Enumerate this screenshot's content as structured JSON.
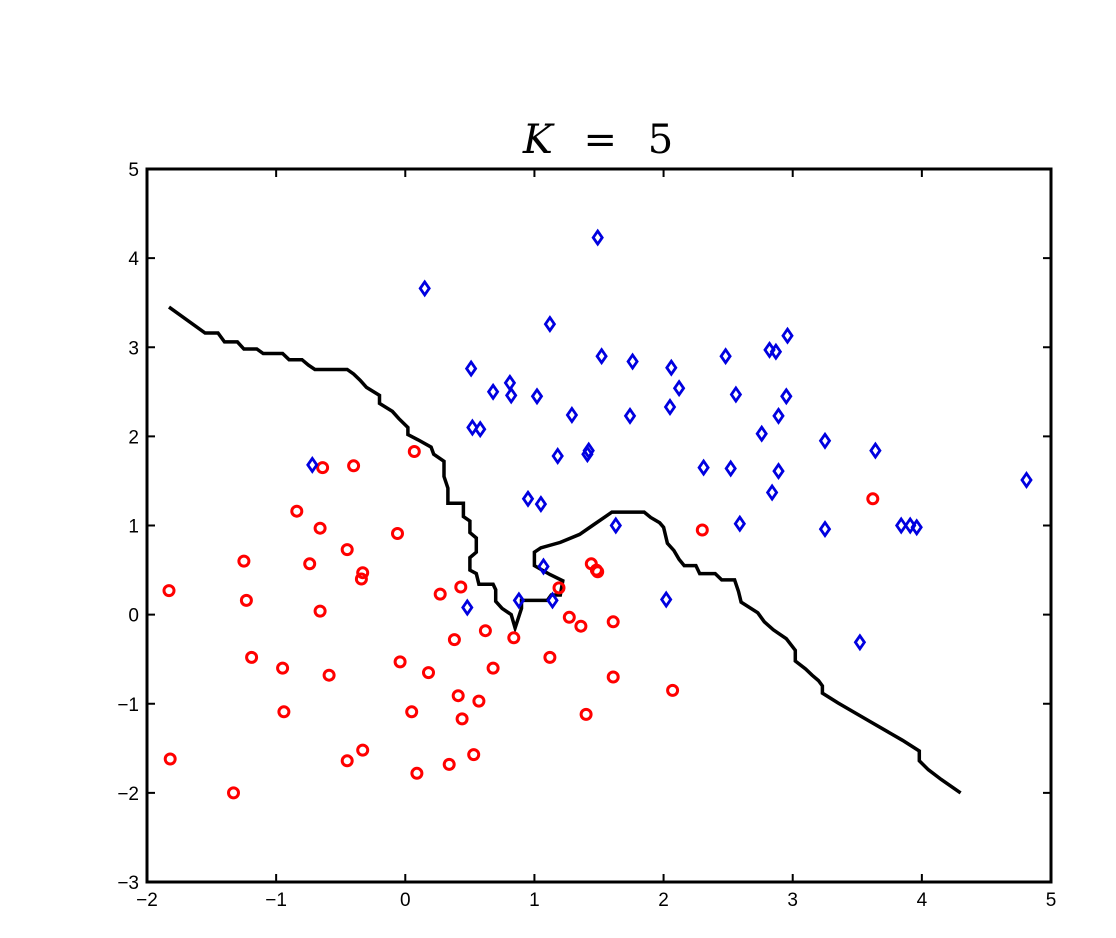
{
  "chart_data": {
    "type": "scatter",
    "title": "K = 5",
    "title_parts": {
      "var": "K",
      "eq": "=",
      "val": "5"
    },
    "xlabel": "",
    "ylabel": "",
    "xlim": [
      -2,
      5
    ],
    "ylim": [
      -3,
      5
    ],
    "xticks": [
      -2,
      -1,
      0,
      1,
      2,
      3,
      4,
      5
    ],
    "yticks": [
      -3,
      -2,
      -1,
      0,
      1,
      2,
      3,
      4,
      5
    ],
    "xtick_labels": [
      "−2",
      "−1",
      "0",
      "1",
      "2",
      "3",
      "4",
      "5"
    ],
    "ytick_labels": [
      "−3",
      "−2",
      "−1",
      "0",
      "1",
      "2",
      "3",
      "4",
      "5"
    ],
    "grid": false,
    "colors": {
      "class_circle": "#ff0000",
      "class_diamond": "#0000e0",
      "boundary": "#000000",
      "axes": "#000000"
    },
    "series": [
      {
        "marker": "circle",
        "color": "#ff0000",
        "points": [
          [
            -1.83,
            0.27
          ],
          [
            -1.82,
            -1.62
          ],
          [
            -1.33,
            -2.0
          ],
          [
            -1.25,
            0.6
          ],
          [
            -1.23,
            0.16
          ],
          [
            -1.19,
            -0.48
          ],
          [
            -0.95,
            -0.6
          ],
          [
            -0.94,
            -1.09
          ],
          [
            -0.84,
            1.16
          ],
          [
            -0.74,
            0.57
          ],
          [
            -0.66,
            0.04
          ],
          [
            -0.66,
            0.97
          ],
          [
            -0.64,
            1.65
          ],
          [
            -0.59,
            -0.68
          ],
          [
            -0.45,
            0.73
          ],
          [
            -0.4,
            1.67
          ],
          [
            -0.34,
            0.4
          ],
          [
            -0.33,
            0.47
          ],
          [
            -0.33,
            -1.52
          ],
          [
            -0.45,
            -1.64
          ],
          [
            -0.06,
            0.91
          ],
          [
            -0.04,
            -0.53
          ],
          [
            0.05,
            -1.09
          ],
          [
            0.07,
            1.83
          ],
          [
            0.09,
            -1.78
          ],
          [
            0.18,
            -0.65
          ],
          [
            0.27,
            0.23
          ],
          [
            0.34,
            -1.68
          ],
          [
            0.38,
            -0.28
          ],
          [
            0.41,
            -0.91
          ],
          [
            0.44,
            -1.17
          ],
          [
            0.43,
            0.31
          ],
          [
            0.53,
            -1.57
          ],
          [
            0.57,
            -0.97
          ],
          [
            0.62,
            -0.18
          ],
          [
            0.68,
            -0.6
          ],
          [
            0.84,
            -0.26
          ],
          [
            1.12,
            -0.48
          ],
          [
            1.19,
            0.3
          ],
          [
            1.27,
            -0.03
          ],
          [
            1.36,
            -0.13
          ],
          [
            1.4,
            -1.12
          ],
          [
            1.44,
            0.57
          ],
          [
            1.48,
            0.5
          ],
          [
            1.49,
            0.48
          ],
          [
            1.61,
            -0.08
          ],
          [
            1.61,
            -0.7
          ],
          [
            2.07,
            -0.85
          ],
          [
            2.3,
            0.95
          ],
          [
            3.62,
            1.3
          ]
        ]
      },
      {
        "marker": "diamond",
        "color": "#0000e0",
        "points": [
          [
            -0.72,
            1.68
          ],
          [
            0.15,
            3.66
          ],
          [
            0.48,
            0.08
          ],
          [
            0.51,
            2.76
          ],
          [
            0.52,
            2.1
          ],
          [
            0.58,
            2.08
          ],
          [
            0.68,
            2.5
          ],
          [
            0.81,
            2.6
          ],
          [
            0.82,
            2.46
          ],
          [
            0.88,
            0.16
          ],
          [
            0.95,
            1.3
          ],
          [
            1.02,
            2.45
          ],
          [
            1.05,
            1.24
          ],
          [
            1.07,
            0.54
          ],
          [
            1.12,
            3.26
          ],
          [
            1.14,
            0.16
          ],
          [
            1.18,
            1.78
          ],
          [
            1.29,
            2.24
          ],
          [
            1.41,
            1.8
          ],
          [
            1.42,
            1.84
          ],
          [
            1.49,
            4.23
          ],
          [
            1.52,
            2.9
          ],
          [
            1.63,
            1.0
          ],
          [
            1.74,
            2.23
          ],
          [
            1.76,
            2.84
          ],
          [
            2.02,
            0.17
          ],
          [
            2.05,
            2.33
          ],
          [
            2.06,
            2.77
          ],
          [
            2.12,
            2.54
          ],
          [
            2.31,
            1.65
          ],
          [
            2.48,
            2.9
          ],
          [
            2.52,
            1.64
          ],
          [
            2.56,
            2.47
          ],
          [
            2.59,
            1.02
          ],
          [
            2.76,
            2.03
          ],
          [
            2.82,
            2.97
          ],
          [
            2.84,
            1.37
          ],
          [
            2.87,
            2.95
          ],
          [
            2.89,
            1.61
          ],
          [
            2.89,
            2.23
          ],
          [
            2.95,
            2.45
          ],
          [
            2.96,
            3.13
          ],
          [
            3.25,
            0.96
          ],
          [
            3.25,
            1.95
          ],
          [
            3.52,
            -0.31
          ],
          [
            3.64,
            1.84
          ],
          [
            3.84,
            1.0
          ],
          [
            3.91,
            1.0
          ],
          [
            3.96,
            0.98
          ],
          [
            4.81,
            1.51
          ]
        ]
      }
    ],
    "boundary": [
      [
        -1.83,
        3.45
      ],
      [
        -1.55,
        3.16
      ],
      [
        -1.45,
        3.16
      ],
      [
        -1.4,
        3.06
      ],
      [
        -1.3,
        3.06
      ],
      [
        -1.25,
        2.98
      ],
      [
        -1.15,
        2.98
      ],
      [
        -1.1,
        2.93
      ],
      [
        -0.95,
        2.93
      ],
      [
        -0.9,
        2.86
      ],
      [
        -0.8,
        2.86
      ],
      [
        -0.75,
        2.8
      ],
      [
        -0.7,
        2.75
      ],
      [
        -0.45,
        2.75
      ],
      [
        -0.4,
        2.7
      ],
      [
        -0.35,
        2.63
      ],
      [
        -0.3,
        2.55
      ],
      [
        -0.2,
        2.46
      ],
      [
        -0.2,
        2.37
      ],
      [
        -0.1,
        2.28
      ],
      [
        -0.05,
        2.2
      ],
      [
        0.02,
        2.1
      ],
      [
        0.02,
        2.02
      ],
      [
        0.1,
        1.96
      ],
      [
        0.2,
        1.88
      ],
      [
        0.22,
        1.8
      ],
      [
        0.3,
        1.72
      ],
      [
        0.3,
        1.55
      ],
      [
        0.33,
        1.42
      ],
      [
        0.33,
        1.25
      ],
      [
        0.45,
        1.25
      ],
      [
        0.45,
        1.1
      ],
      [
        0.5,
        1.05
      ],
      [
        0.5,
        0.92
      ],
      [
        0.55,
        0.86
      ],
      [
        0.55,
        0.7
      ],
      [
        0.5,
        0.64
      ],
      [
        0.5,
        0.5
      ],
      [
        0.55,
        0.46
      ],
      [
        0.57,
        0.34
      ],
      [
        0.68,
        0.34
      ],
      [
        0.7,
        0.28
      ],
      [
        0.7,
        0.15
      ],
      [
        0.75,
        0.07
      ],
      [
        0.82,
        0.0
      ],
      [
        0.85,
        -0.15
      ],
      [
        0.9,
        0.07
      ],
      [
        0.9,
        0.16
      ],
      [
        1.1,
        0.16
      ],
      [
        1.13,
        0.22
      ],
      [
        1.2,
        0.22
      ],
      [
        1.22,
        0.38
      ],
      [
        1.12,
        0.45
      ],
      [
        1.0,
        0.55
      ],
      [
        1.0,
        0.7
      ],
      [
        1.05,
        0.75
      ],
      [
        1.2,
        0.81
      ],
      [
        1.35,
        0.9
      ],
      [
        1.45,
        1.0
      ],
      [
        1.55,
        1.1
      ],
      [
        1.6,
        1.15
      ],
      [
        1.85,
        1.15
      ],
      [
        1.9,
        1.09
      ],
      [
        1.97,
        1.03
      ],
      [
        2.0,
        0.98
      ],
      [
        2.03,
        0.8
      ],
      [
        2.08,
        0.72
      ],
      [
        2.12,
        0.62
      ],
      [
        2.16,
        0.55
      ],
      [
        2.25,
        0.55
      ],
      [
        2.28,
        0.46
      ],
      [
        2.4,
        0.46
      ],
      [
        2.45,
        0.39
      ],
      [
        2.55,
        0.39
      ],
      [
        2.58,
        0.26
      ],
      [
        2.6,
        0.14
      ],
      [
        2.73,
        0.02
      ],
      [
        2.78,
        -0.08
      ],
      [
        2.85,
        -0.17
      ],
      [
        2.95,
        -0.27
      ],
      [
        3.02,
        -0.4
      ],
      [
        3.02,
        -0.52
      ],
      [
        3.1,
        -0.61
      ],
      [
        3.15,
        -0.68
      ],
      [
        3.2,
        -0.74
      ],
      [
        3.23,
        -0.8
      ],
      [
        3.23,
        -0.88
      ],
      [
        3.35,
        -0.99
      ],
      [
        3.6,
        -1.2
      ],
      [
        3.85,
        -1.41
      ],
      [
        3.98,
        -1.53
      ],
      [
        3.98,
        -1.64
      ],
      [
        4.05,
        -1.74
      ],
      [
        4.15,
        -1.85
      ],
      [
        4.3,
        -2.0
      ]
    ]
  }
}
